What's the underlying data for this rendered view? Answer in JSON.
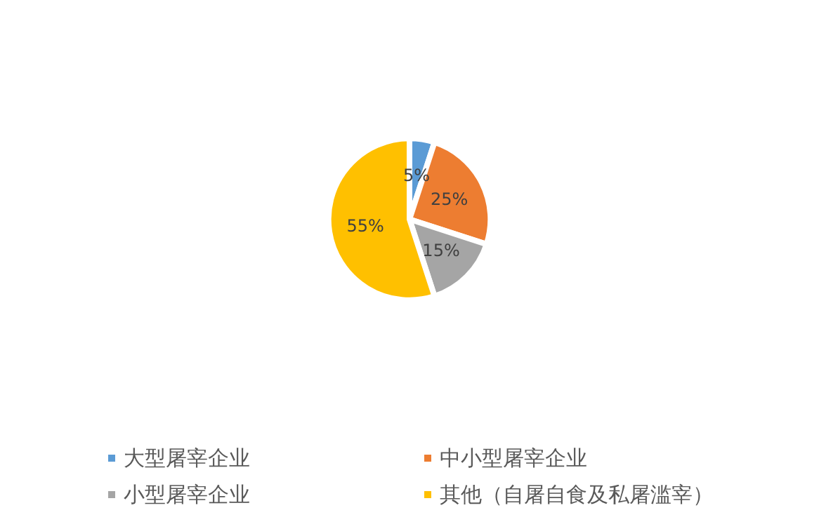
{
  "chart_data": {
    "type": "pie",
    "categories": [
      "大型屠宰企业",
      "中小型屠宰企业",
      "小型屠宰企业",
      "其他（自屠自食及私屠滥宰）"
    ],
    "values": [
      5,
      25,
      15,
      55
    ],
    "colors": [
      "#5b9bd5",
      "#ed7d31",
      "#a5a5a5",
      "#ffc000"
    ],
    "value_labels": [
      "5%",
      "25%",
      "15%",
      "55%"
    ],
    "legend": "bottom"
  }
}
